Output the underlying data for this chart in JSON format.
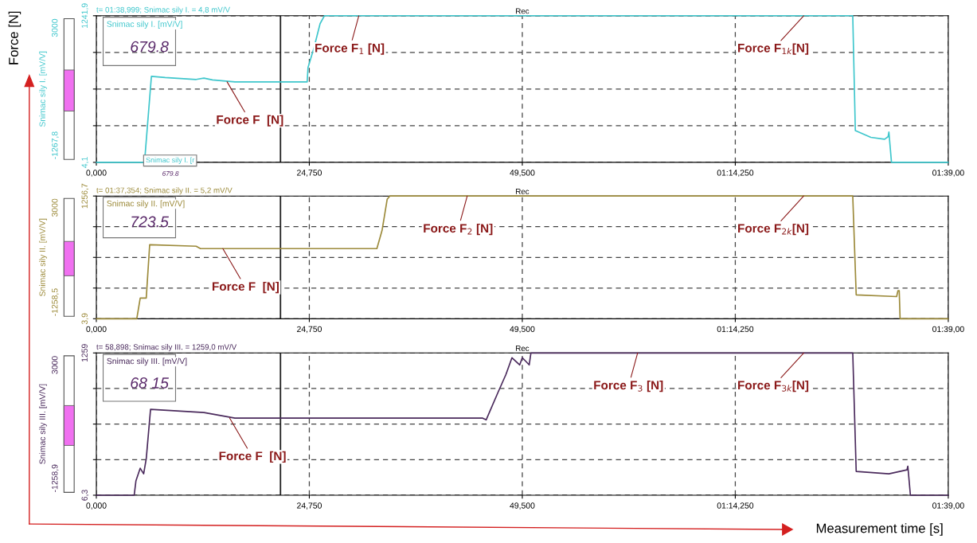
{
  "chart_data": [
    {
      "type": "line",
      "ylabel": "Snimac sily I. [mV/V]",
      "xlim": [
        0,
        99
      ],
      "ylim": [
        4.1,
        1241.9
      ],
      "grid": true,
      "xticks": [
        {
          "value": 0,
          "label": "0,000"
        },
        {
          "value": 24.75,
          "label": "24,750"
        },
        {
          "value": 49.5,
          "label": "49,500"
        },
        {
          "value": 74.25,
          "label": "01:14,250"
        },
        {
          "value": 99,
          "label": "01:39,00"
        }
      ],
      "yticks": [
        {
          "value": 4.1,
          "label": "4,1"
        },
        {
          "value": 313.55,
          "label": null
        },
        {
          "value": 623.0,
          "label": null
        },
        {
          "value": 932.45,
          "label": null
        },
        {
          "value": 1241.9,
          "label": "1241,9"
        }
      ],
      "series": [
        {
          "color": "#3ec6cc",
          "x": [
            0,
            5.6,
            6.4,
            8,
            11.6,
            12.5,
            13.5,
            16.1,
            24.5,
            24.6,
            25.3,
            26,
            26.5,
            87.9,
            88.2,
            90,
            91.6,
            92.0,
            92.1,
            92.4,
            99
          ],
          "values": [
            4.1,
            4.1,
            730,
            720,
            704,
            715,
            700,
            683.5,
            683.5,
            805,
            973,
            1175,
            1241.9,
            1241.9,
            273,
            215,
            199,
            220,
            260,
            4.1,
            4.1
          ]
        }
      ],
      "ref_lines": [
        {
          "axis": "x",
          "value": 21.4,
          "color": "#202020",
          "line_style": "solid"
        }
      ],
      "annotations": [
        "t= 01:38,999; Snimac sily I. = 4,8 mV/V",
        "Rec",
        "Snimac sily I. [mV/V]",
        "679.8",
        "3000",
        "-1267,8",
        "Snimac sily I. [r",
        "679.8",
        "Force [N]",
        "Measurement time [s]",
        {
          "text": "Force F  [N]",
          "x": 15.2,
          "y": 683.5
        },
        {
          "text": "Force F$_{1}$ [N]",
          "x": 30.5,
          "y": 1241.9
        },
        {
          "text": "Force F$_{1k}$[N]",
          "x": 82.2,
          "y": 1241.9
        }
      ]
    },
    {
      "type": "line",
      "ylabel": "Snimac sily II. [mV/V]",
      "xlim": [
        0,
        99
      ],
      "ylim": [
        3.9,
        1256.7
      ],
      "grid": true,
      "xticks": [
        {
          "value": 0,
          "label": "0,000"
        },
        {
          "value": 24.75,
          "label": "24,750"
        },
        {
          "value": 49.5,
          "label": "49,500"
        },
        {
          "value": 74.25,
          "label": "01:14,250"
        },
        {
          "value": 99,
          "label": "01:39,00"
        }
      ],
      "yticks": [
        {
          "value": 3.9,
          "label": "3,9"
        },
        {
          "value": 317.1,
          "label": null
        },
        {
          "value": 630.3,
          "label": null
        },
        {
          "value": 943.5,
          "label": null
        },
        {
          "value": 1256.7,
          "label": "1256,7"
        }
      ],
      "series": [
        {
          "color": "#9c8a3a",
          "x": [
            0,
            4.7,
            5.1,
            5.8,
            6.2,
            11.6,
            12.1,
            32.6,
            33.2,
            33.8,
            34.1,
            87.9,
            88.3,
            93,
            93.15,
            93.3,
            93.4,
            99
          ],
          "values": [
            3.9,
            3.9,
            215,
            215,
            760,
            744,
            720,
            720,
            904,
            1224,
            1256.7,
            1256.7,
            248,
            230,
            290,
            290,
            3.9,
            3.9
          ]
        }
      ],
      "ref_lines": [
        {
          "axis": "x",
          "value": 21.4,
          "color": "#202020",
          "line_style": "solid"
        }
      ],
      "annotations": [
        "t= 01:37,354; Snimac sily II. = 5,2 mV/V",
        "Rec",
        "Snimac sily II. [mV/V]",
        "723.5",
        "3000",
        "-1258,5",
        {
          "text": "Force F  [N]",
          "x": 14.7,
          "y": 720
        },
        {
          "text": "Force F$_{2}$ [N]",
          "x": 43.1,
          "y": 1256.7
        },
        {
          "text": "Force F$_{2k}$[N]",
          "x": 82.2,
          "y": 1256.7
        }
      ]
    },
    {
      "type": "line",
      "ylabel": "Snimac sily III. [mV/V]",
      "xlim": [
        0,
        99
      ],
      "ylim": [
        6.3,
        1259
      ],
      "grid": true,
      "xticks": [
        {
          "value": 0,
          "label": "0,000"
        },
        {
          "value": 24.75,
          "label": "24,750"
        },
        {
          "value": 49.5,
          "label": "49,500"
        },
        {
          "value": 74.25,
          "label": "01:14,250"
        },
        {
          "value": 99,
          "label": "01:39,00"
        }
      ],
      "yticks": [
        {
          "value": 6.3,
          "label": "6,3"
        },
        {
          "value": 319.475,
          "label": null
        },
        {
          "value": 632.65,
          "label": null
        },
        {
          "value": 945.825,
          "label": null
        },
        {
          "value": 1259,
          "label": "1259"
        }
      ],
      "series": [
        {
          "color": "#4a2a5c",
          "x": [
            0,
            4.4,
            4.6,
            5.1,
            5.5,
            5.8,
            6.3,
            12.5,
            16.1,
            44.9,
            45.3,
            46.7,
            47.6,
            48.3,
            49.2,
            49.5,
            50.3,
            50.5,
            87.9,
            88.3,
            92.1,
            94.2,
            94.3,
            94.6,
            99
          ],
          "values": [
            6.3,
            6.3,
            132,
            244,
            195,
            328,
            762,
            734,
            685,
            685,
            670,
            916,
            1070,
            1217,
            1154,
            1217,
            1154,
            1259,
            1259,
            216,
            195,
            230,
            262,
            6.3,
            6.3
          ]
        }
      ],
      "ref_lines": [
        {
          "axis": "x",
          "value": 21.4,
          "color": "#202020",
          "line_style": "solid"
        }
      ],
      "annotations": [
        "t= 58,898; Snimac sily III. = 1259,0 mV/V",
        "Rec",
        "Snimac sily III. [mV/V]",
        "68 15",
        "3000",
        "-1258,9",
        {
          "text": "Force F  [N]",
          "x": 15.5,
          "y": 685
        },
        {
          "text": "Force F$_{3}$ [N]",
          "x": 62.9,
          "y": 1259
        },
        {
          "text": "Force F$_{3k}$[N]",
          "x": 82.2,
          "y": 1259
        }
      ]
    }
  ]
}
